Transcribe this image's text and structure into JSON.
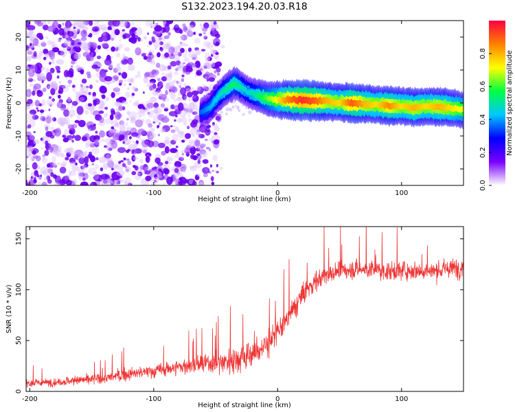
{
  "figure": {
    "title": "S132.2023.194.20.03.R18"
  },
  "chart_data": [
    {
      "type": "heatmap",
      "title": "S132.2023.194.20.03.R18",
      "xlabel": "Height of straight line (km)",
      "ylabel": "Frequency (Hz)",
      "xlim": [
        -203,
        150
      ],
      "ylim": [
        -25,
        25
      ],
      "xticks": [
        -200,
        -100,
        0,
        100
      ],
      "yticks": [
        -20,
        -10,
        0,
        10,
        20
      ],
      "colorbar": {
        "label": "Normalized spectral amplitude",
        "range": [
          0.0,
          1.0
        ],
        "ticks": [
          0.0,
          0.2,
          0.4,
          0.6,
          0.8
        ],
        "tick_labels": [
          "0.0",
          "0.2",
          "0.4",
          "0.6",
          "0.8"
        ],
        "colormap": [
          "#ffffff",
          "#7a00ff",
          "#0000ff",
          "#00c8ff",
          "#00ff40",
          "#ffff00",
          "#ff8000",
          "#ff0040"
        ]
      },
      "noise_region_x": [
        -203,
        -47
      ],
      "signal_trace": [
        {
          "x": -62,
          "y": -3.0,
          "amp": 0.35
        },
        {
          "x": -55,
          "y": -1.5,
          "amp": 0.4
        },
        {
          "x": -48,
          "y": 2.0,
          "amp": 0.45
        },
        {
          "x": -42,
          "y": 4.0,
          "amp": 0.5
        },
        {
          "x": -35,
          "y": 6.0,
          "amp": 0.55
        },
        {
          "x": -30,
          "y": 5.0,
          "amp": 0.5
        },
        {
          "x": -25,
          "y": 3.5,
          "amp": 0.45
        },
        {
          "x": -18,
          "y": 2.5,
          "amp": 0.5
        },
        {
          "x": -10,
          "y": 1.5,
          "amp": 0.6
        },
        {
          "x": -2,
          "y": 1.0,
          "amp": 0.7
        },
        {
          "x": 8,
          "y": 1.0,
          "amp": 0.85
        },
        {
          "x": 20,
          "y": 0.8,
          "amp": 0.95
        },
        {
          "x": 30,
          "y": 0.7,
          "amp": 0.9
        },
        {
          "x": 40,
          "y": 0.5,
          "amp": 0.8
        },
        {
          "x": 50,
          "y": 0.2,
          "amp": 0.75
        },
        {
          "x": 60,
          "y": 0.0,
          "amp": 0.9
        },
        {
          "x": 70,
          "y": -0.3,
          "amp": 0.8
        },
        {
          "x": 80,
          "y": -0.5,
          "amp": 0.75
        },
        {
          "x": 90,
          "y": -0.8,
          "amp": 0.85
        },
        {
          "x": 100,
          "y": -1.0,
          "amp": 0.75
        },
        {
          "x": 110,
          "y": -1.3,
          "amp": 0.8
        },
        {
          "x": 120,
          "y": -1.0,
          "amp": 0.75
        },
        {
          "x": 130,
          "y": -1.2,
          "amp": 0.8
        },
        {
          "x": 140,
          "y": -1.5,
          "amp": 0.75
        },
        {
          "x": 150,
          "y": -2.0,
          "amp": 0.7
        }
      ]
    },
    {
      "type": "line",
      "xlabel": "Height of straight line (km)",
      "ylabel": "SNR (10 * v/v)",
      "xlim": [
        -203,
        150
      ],
      "ylim": [
        0,
        162
      ],
      "xticks": [
        -200,
        -100,
        0,
        100
      ],
      "yticks": [
        0,
        50,
        100,
        150
      ],
      "color": "#ee3333",
      "series": [
        {
          "x": [
            -203,
            -180,
            -160,
            -140,
            -120,
            -100,
            -80,
            -60,
            -50,
            -40,
            -30,
            -20,
            -10,
            0,
            10,
            20,
            30,
            40,
            50,
            60,
            70,
            80,
            90,
            100,
            110,
            120,
            130,
            140,
            150
          ],
          "values": [
            8,
            9,
            11,
            13,
            17,
            20,
            24,
            27,
            28,
            30,
            33,
            37,
            45,
            58,
            75,
            95,
            108,
            115,
            118,
            120,
            120,
            119,
            118,
            119,
            119,
            118,
            119,
            121,
            122
          ],
          "spread": [
            6,
            6,
            7,
            8,
            9,
            10,
            12,
            14,
            16,
            20,
            22,
            25,
            22,
            20,
            18,
            18,
            16,
            15,
            14,
            14,
            14,
            14,
            14,
            14,
            14,
            14,
            14,
            15,
            15
          ]
        }
      ]
    }
  ]
}
